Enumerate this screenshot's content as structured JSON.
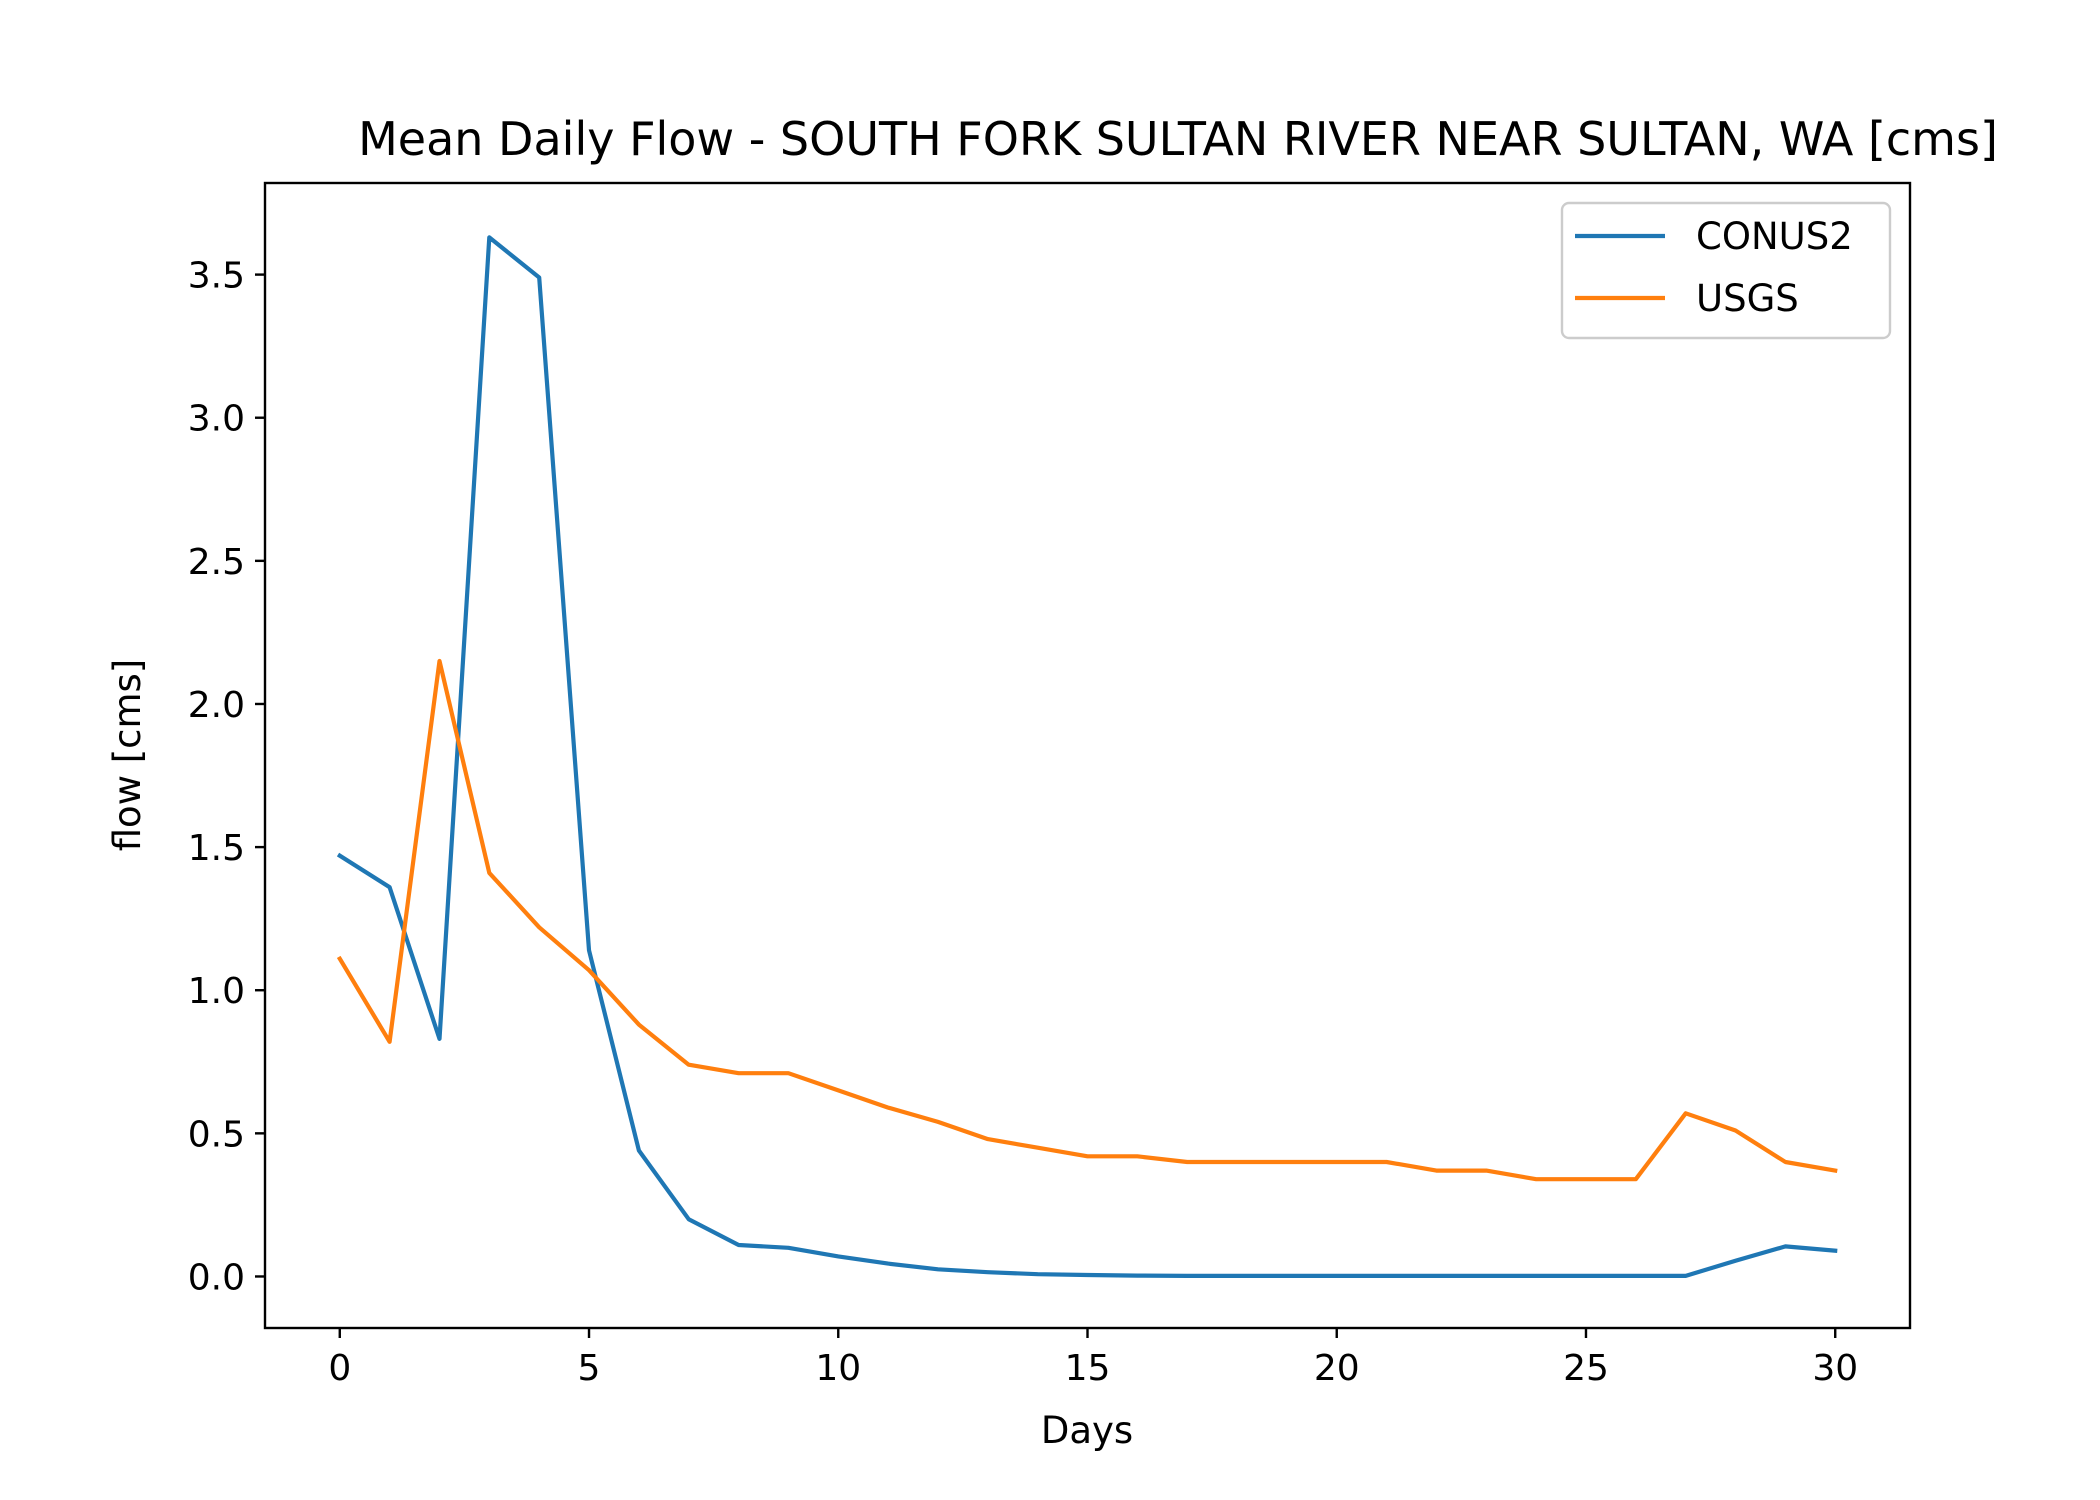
{
  "chart_data": {
    "type": "line",
    "title": "Mean Daily Flow - SOUTH FORK SULTAN RIVER NEAR SULTAN, WA [cms]",
    "xlabel": "Days",
    "ylabel": "flow [cms]",
    "xlim": [
      -1.5,
      31.5
    ],
    "ylim": [
      -0.18,
      3.82
    ],
    "xticks": [
      0,
      5,
      10,
      15,
      20,
      25,
      30
    ],
    "xtick_labels": [
      "0",
      "5",
      "10",
      "15",
      "20",
      "25",
      "30"
    ],
    "yticks": [
      0.0,
      0.5,
      1.0,
      1.5,
      2.0,
      2.5,
      3.0,
      3.5
    ],
    "ytick_labels": [
      "0.0",
      "0.5",
      "1.0",
      "1.5",
      "2.0",
      "2.5",
      "3.0",
      "3.5"
    ],
    "grid": false,
    "legend_position": "top-right",
    "x": [
      0,
      1,
      2,
      3,
      4,
      5,
      6,
      7,
      8,
      9,
      10,
      11,
      12,
      13,
      14,
      15,
      16,
      17,
      18,
      19,
      20,
      21,
      22,
      23,
      24,
      25,
      26,
      27,
      28,
      29,
      30
    ],
    "series": [
      {
        "name": "CONUS2",
        "color": "#1f77b4",
        "values": [
          1.47,
          1.36,
          0.83,
          3.63,
          3.49,
          1.14,
          0.44,
          0.2,
          0.11,
          0.1,
          0.07,
          0.045,
          0.025,
          0.015,
          0.008,
          0.005,
          0.003,
          0.002,
          0.002,
          0.002,
          0.002,
          0.002,
          0.002,
          0.002,
          0.002,
          0.002,
          0.002,
          0.002,
          0.055,
          0.105,
          0.09
        ]
      },
      {
        "name": "USGS",
        "color": "#ff7f0e",
        "values": [
          1.11,
          0.82,
          2.15,
          1.41,
          1.22,
          1.07,
          0.88,
          0.74,
          0.71,
          0.71,
          0.65,
          0.59,
          0.54,
          0.48,
          0.45,
          0.42,
          0.42,
          0.4,
          0.4,
          0.4,
          0.4,
          0.4,
          0.37,
          0.37,
          0.34,
          0.34,
          0.34,
          0.57,
          0.51,
          0.4,
          0.37
        ]
      }
    ]
  }
}
